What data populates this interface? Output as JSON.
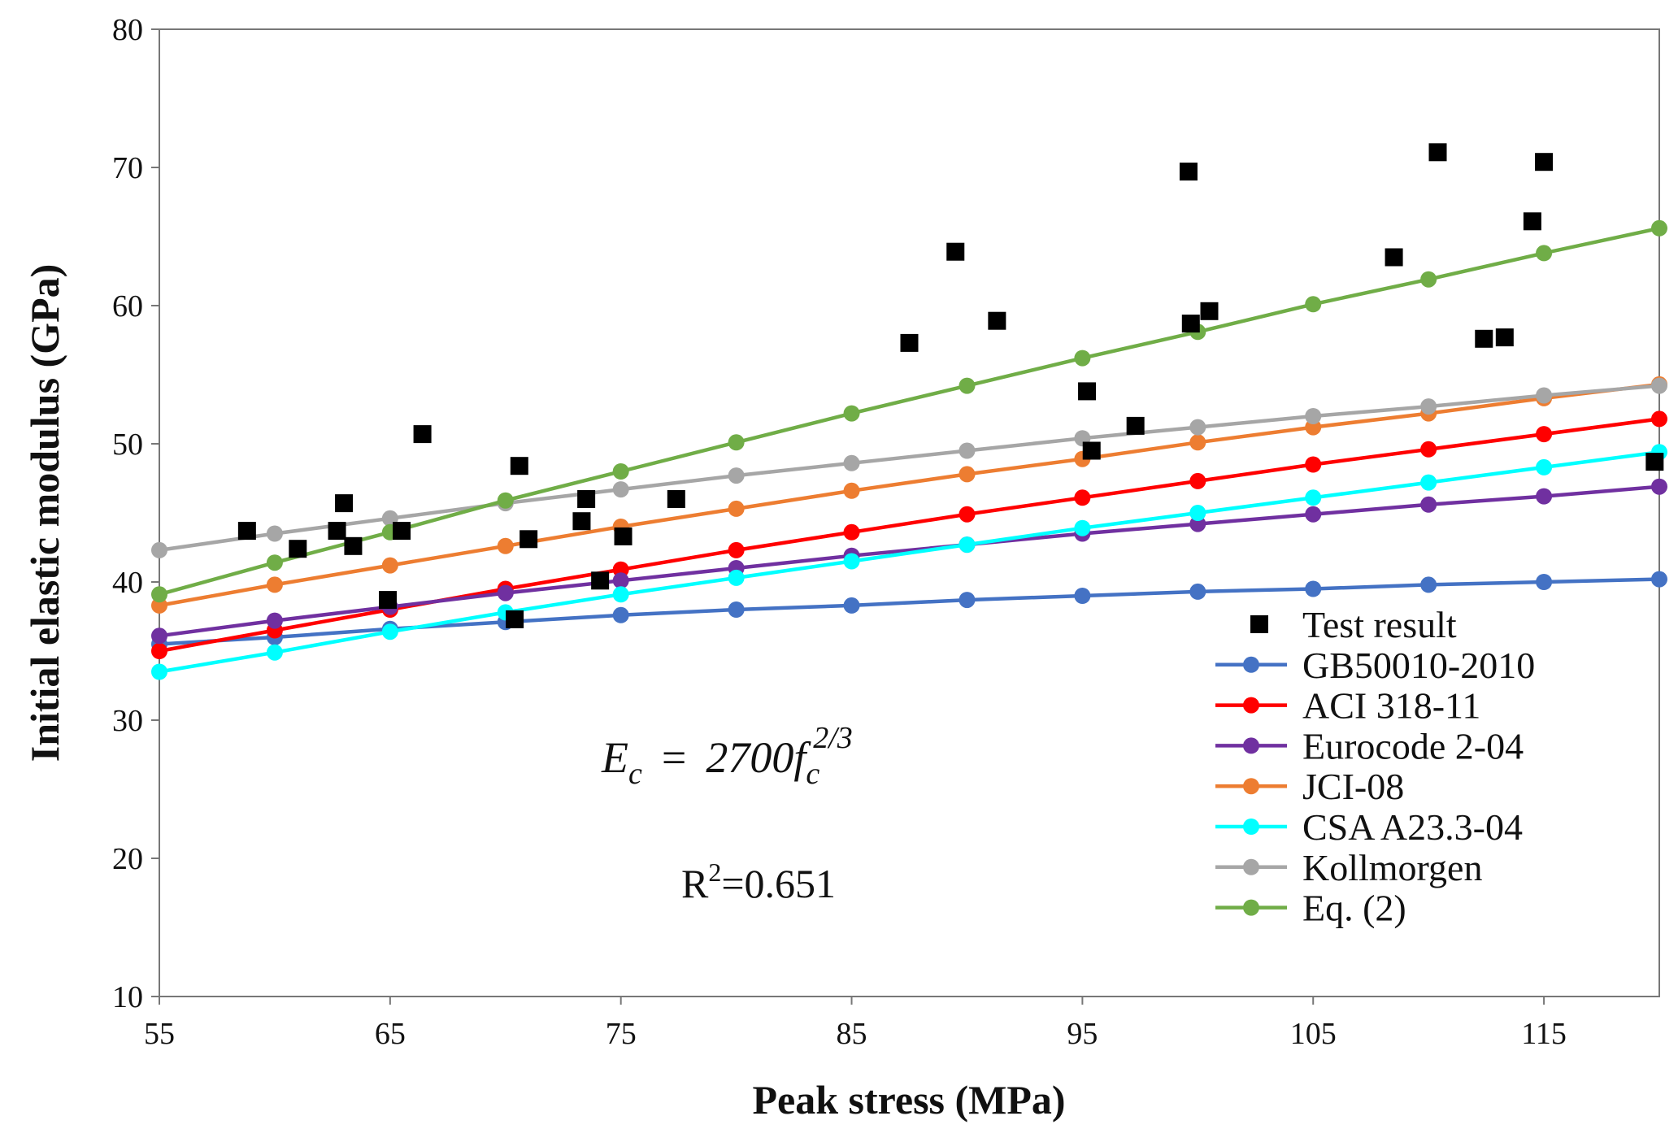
{
  "chart_data": {
    "type": "scatter",
    "xlabel": "Peak stress (MPa)",
    "ylabel": "Initial elastic modulus (GPa)",
    "xlim": [
      55,
      120
    ],
    "ylim": [
      10,
      80
    ],
    "xticks": [
      55,
      65,
      75,
      85,
      95,
      105,
      115
    ],
    "yticks": [
      10,
      20,
      30,
      40,
      50,
      60,
      70,
      80
    ],
    "legend_position": "bottom-right",
    "annotations": {
      "equation": {
        "lhs": "E",
        "lhs_sub": "c",
        "equals": "=",
        "coef": "2700",
        "var": "f",
        "var_sub": "c",
        "exponent": "2/3"
      },
      "r2": {
        "prefix": "R",
        "sup": "2",
        "value": "=0.651"
      }
    },
    "test_result": {
      "name": "Test result",
      "color": "#000000",
      "points": [
        [
          58.8,
          43.7
        ],
        [
          61.0,
          42.4
        ],
        [
          62.7,
          43.7
        ],
        [
          63.0,
          45.7
        ],
        [
          63.4,
          42.6
        ],
        [
          64.9,
          38.7
        ],
        [
          65.5,
          43.7
        ],
        [
          66.4,
          50.7
        ],
        [
          70.4,
          37.3
        ],
        [
          70.6,
          48.4
        ],
        [
          71.0,
          43.1
        ],
        [
          73.3,
          44.4
        ],
        [
          73.5,
          46.0
        ],
        [
          74.1,
          40.1
        ],
        [
          75.1,
          43.3
        ],
        [
          77.4,
          46.0
        ],
        [
          87.5,
          57.3
        ],
        [
          89.5,
          63.9
        ],
        [
          91.3,
          58.9
        ],
        [
          95.2,
          53.8
        ],
        [
          95.4,
          49.5
        ],
        [
          97.3,
          51.3
        ],
        [
          99.6,
          69.7
        ],
        [
          99.7,
          58.7
        ],
        [
          100.5,
          59.6
        ],
        [
          108.5,
          63.5
        ],
        [
          110.4,
          71.1
        ],
        [
          112.4,
          57.6
        ],
        [
          113.3,
          57.7
        ],
        [
          114.5,
          66.1
        ],
        [
          115.0,
          70.4
        ],
        [
          119.8,
          48.7
        ]
      ]
    },
    "x": [
      55,
      60,
      65,
      70,
      75,
      80,
      85,
      90,
      95,
      100,
      105,
      110,
      115,
      120
    ],
    "series": [
      {
        "name": "GB50010-2010",
        "color": "#4472C4",
        "values": [
          35.5,
          36.0,
          36.6,
          37.1,
          37.6,
          38.0,
          38.3,
          38.7,
          39.0,
          39.3,
          39.5,
          39.8,
          40.0,
          40.2
        ]
      },
      {
        "name": "ACI 318-11",
        "color": "#FF0000",
        "values": [
          35.0,
          36.5,
          38.0,
          39.5,
          40.9,
          42.3,
          43.6,
          44.9,
          46.1,
          47.3,
          48.5,
          49.6,
          50.7,
          51.8
        ]
      },
      {
        "name": "Eurocode 2-04",
        "color": "#7030A0",
        "values": [
          36.1,
          37.2,
          38.2,
          39.2,
          40.1,
          41.0,
          41.9,
          42.7,
          43.5,
          44.2,
          44.9,
          45.6,
          46.2,
          46.9
        ]
      },
      {
        "name": "JCI-08",
        "color": "#ED7D31",
        "values": [
          38.3,
          39.8,
          41.2,
          42.6,
          44.0,
          45.3,
          46.6,
          47.8,
          48.9,
          50.1,
          51.2,
          52.2,
          53.3,
          54.3
        ]
      },
      {
        "name": "CSA A23.3-04",
        "color": "#00FFFF",
        "values": [
          33.5,
          34.9,
          36.4,
          37.8,
          39.1,
          40.3,
          41.5,
          42.7,
          43.9,
          45.0,
          46.1,
          47.2,
          48.3,
          49.4
        ]
      },
      {
        "name": "Kollmorgen",
        "color": "#A6A6A6",
        "values": [
          42.3,
          43.5,
          44.6,
          45.7,
          46.7,
          47.7,
          48.6,
          49.5,
          50.4,
          51.2,
          52.0,
          52.7,
          53.5,
          54.2
        ]
      },
      {
        "name": "Eq. (2)",
        "color": "#70AD47",
        "values": [
          39.1,
          41.4,
          43.6,
          45.9,
          48.0,
          50.1,
          52.2,
          54.2,
          56.2,
          58.1,
          60.1,
          61.9,
          63.8,
          65.6
        ]
      }
    ]
  }
}
